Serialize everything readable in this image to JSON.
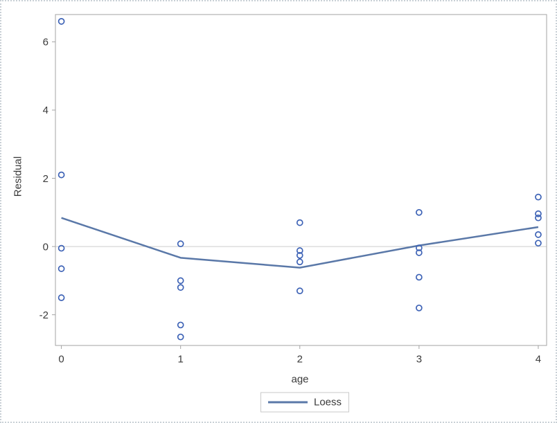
{
  "figure": {
    "background": "#ffffff",
    "border_color": "#c9d0d6"
  },
  "chart_data": {
    "type": "scatter",
    "title": "",
    "xlabel": "age",
    "ylabel": "Residual",
    "x_tick_values": [
      0,
      1,
      2,
      3,
      4
    ],
    "x_tick_labels": [
      "0",
      "1",
      "2",
      "3",
      "4"
    ],
    "y_tick_values": [
      6,
      4,
      2,
      0,
      -2
    ],
    "y_tick_labels": [
      "6",
      "4",
      "2",
      "0",
      "-2"
    ],
    "xlim": [
      -0.05,
      4.07
    ],
    "ylim": [
      -2.9,
      6.8
    ],
    "grid": false,
    "reference_line_y": 0,
    "scatter_points": [
      {
        "age": 0,
        "residuals": [
          6.6,
          2.1,
          -0.05,
          -0.65,
          -1.5
        ]
      },
      {
        "age": 1,
        "residuals": [
          0.08,
          -1.0,
          -1.2,
          -2.3,
          -2.65
        ]
      },
      {
        "age": 2,
        "residuals": [
          0.7,
          -0.12,
          -0.26,
          -0.45,
          -1.3
        ]
      },
      {
        "age": 3,
        "residuals": [
          1.0,
          -0.04,
          -0.18,
          -0.9,
          -1.8
        ]
      },
      {
        "age": 4,
        "residuals": [
          1.45,
          0.96,
          0.84,
          0.35,
          0.1
        ]
      }
    ],
    "series": [
      {
        "name": "Loess",
        "type": "line",
        "x": [
          0,
          1,
          2,
          3,
          4
        ],
        "y": [
          0.84,
          -0.33,
          -0.62,
          0.03,
          0.57
        ]
      }
    ],
    "legend": {
      "position": "bottom",
      "entries": [
        {
          "label": "Loess",
          "swatch": "line"
        }
      ]
    },
    "colors": {
      "marker": "#3e63b6",
      "loess_line": "#5a78a8",
      "reference_line": "#cccccc",
      "axis_frame": "#a3a3a3",
      "tick_mark": "#a3a3a3",
      "text": "#3a3a3a",
      "legend_border": "#c9c9c9"
    }
  }
}
